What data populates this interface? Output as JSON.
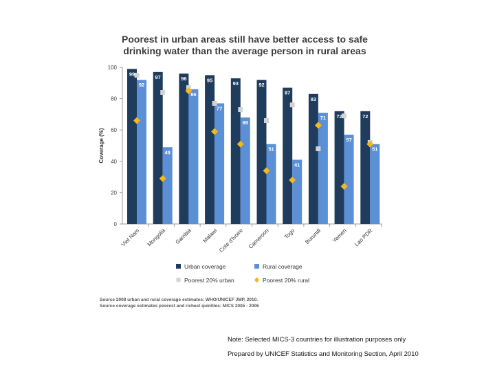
{
  "chart_data": {
    "type": "bar",
    "title_lines": [
      "Poorest in urban areas still have better access to safe",
      "drinking water than the average person in rural areas"
    ],
    "ylabel": "Coverage (%)",
    "ylim": [
      0,
      100
    ],
    "yticks": [
      "0",
      "20",
      "40",
      "60",
      "80",
      "100"
    ],
    "categories": [
      "Viet Nam",
      "Mongolia",
      "Gambia",
      "Malawi",
      "Cote d'Ivoire",
      "Cameroon",
      "Togo",
      "Burundi",
      "Yemen",
      "Lao PDR"
    ],
    "series": [
      {
        "name": "Urban coverage",
        "kind": "bar",
        "color": "#1f3c5c",
        "values": [
          99,
          97,
          96,
          95,
          93,
          92,
          87,
          83,
          72,
          72
        ]
      },
      {
        "name": "Rural coverage",
        "kind": "bar",
        "color": "#5b8fd6",
        "values": [
          92,
          49,
          86,
          77,
          68,
          51,
          41,
          71,
          57,
          51
        ]
      },
      {
        "name": "Poorest 20% urban",
        "kind": "marker",
        "marker": "square",
        "color": "#d3d3d3",
        "values": [
          95,
          84,
          87,
          77,
          73,
          66,
          76,
          48,
          69,
          52
        ]
      },
      {
        "name": "Poorest 20% rural",
        "kind": "marker",
        "marker": "diamond",
        "color": "#f3b81c",
        "values": [
          66,
          29,
          85,
          59,
          51,
          34,
          28,
          63,
          24,
          51
        ]
      }
    ],
    "legend_position": "bottom"
  },
  "source_lines": [
    "Source 2008 urban and rural coverage estimates: WHO/UNICEF JMP, 2010.",
    "Source coverage estimates poorest and richest quintiles: MICS 2005 - 2006"
  ],
  "notes": [
    "Note: Selected MICS-3 countries for illustration purposes only",
    "Prepared by UNICEF Statistics and Monitoring Section, April 2010"
  ]
}
